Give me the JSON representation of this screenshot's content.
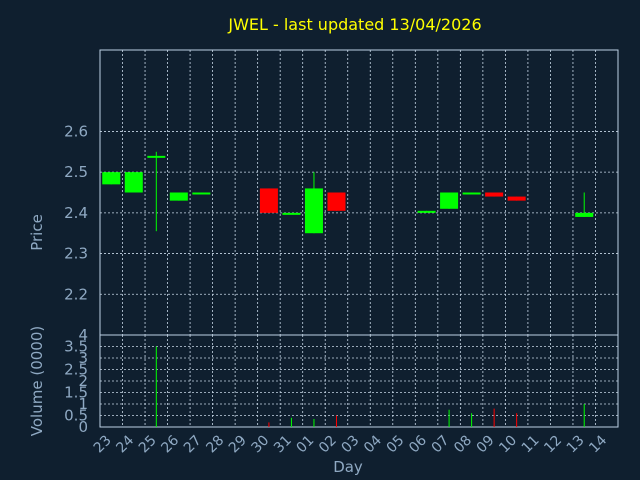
{
  "colors": {
    "background": "#0f1f2f",
    "frame": "#bcd0e4",
    "grid": "#c8d8e8",
    "text": "#8fa9c3",
    "title": "#ffff00",
    "up": "#00ff00",
    "down": "#ff0000"
  },
  "chart_data": [
    {
      "type": "candlestick",
      "title": "JWEL - last updated 13/04/2026",
      "ylabel": "Price",
      "ylim": [
        2.1,
        2.8
      ],
      "yticks": [
        "2.2",
        "2.3",
        "2.4",
        "2.5",
        "2.6"
      ],
      "grid": true,
      "candles": [
        {
          "x": 0,
          "open": 2.47,
          "high": 2.5,
          "low": 2.47,
          "close": 2.5
        },
        {
          "x": 1,
          "open": 2.45,
          "high": 2.5,
          "low": 2.45,
          "close": 2.5
        },
        {
          "x": 2,
          "open": 2.54,
          "high": 2.55,
          "low": 2.355,
          "close": 2.54
        },
        {
          "x": 3,
          "open": 2.43,
          "high": 2.45,
          "low": 2.43,
          "close": 2.45
        },
        {
          "x": 4,
          "open": 2.45,
          "high": 2.45,
          "low": 2.45,
          "close": 2.45
        },
        {
          "x": 7,
          "open": 2.46,
          "high": 2.46,
          "low": 2.4,
          "close": 2.4
        },
        {
          "x": 8,
          "open": 2.4,
          "high": 2.4,
          "low": 2.4,
          "close": 2.4
        },
        {
          "x": 9,
          "open": 2.35,
          "high": 2.5,
          "low": 2.35,
          "close": 2.46
        },
        {
          "x": 10,
          "open": 2.45,
          "high": 2.45,
          "low": 2.405,
          "close": 2.405
        },
        {
          "x": 14,
          "open": 2.4,
          "high": 2.405,
          "low": 2.4,
          "close": 2.405
        },
        {
          "x": 15,
          "open": 2.41,
          "high": 2.45,
          "low": 2.41,
          "close": 2.45
        },
        {
          "x": 16,
          "open": 2.45,
          "high": 2.45,
          "low": 2.45,
          "close": 2.45
        },
        {
          "x": 17,
          "open": 2.45,
          "high": 2.45,
          "low": 2.44,
          "close": 2.44
        },
        {
          "x": 18,
          "open": 2.44,
          "high": 2.44,
          "low": 2.43,
          "close": 2.43
        },
        {
          "x": 21,
          "open": 2.39,
          "high": 2.45,
          "low": 2.39,
          "close": 2.4
        }
      ]
    },
    {
      "type": "bar",
      "ylabel": "Volume (0000)",
      "xlabel": "Day",
      "ylim": [
        0,
        4
      ],
      "yticks": [
        "0",
        "0.5",
        "1",
        "1.5",
        "2",
        "2.5",
        "3",
        "3.5",
        "4"
      ],
      "grid": true,
      "categories": [
        "23",
        "24",
        "25",
        "26",
        "27",
        "28",
        "29",
        "30",
        "31",
        "01",
        "02",
        "03",
        "04",
        "05",
        "06",
        "07",
        "08",
        "09",
        "10",
        "11",
        "12",
        "13",
        "14"
      ],
      "bars": [
        {
          "x": 2,
          "value": 3.5,
          "direction": "up"
        },
        {
          "x": 7,
          "value": 0.2,
          "direction": "down"
        },
        {
          "x": 8,
          "value": 0.4,
          "direction": "up"
        },
        {
          "x": 9,
          "value": 0.35,
          "direction": "up"
        },
        {
          "x": 10,
          "value": 0.5,
          "direction": "down"
        },
        {
          "x": 15,
          "value": 0.75,
          "direction": "up"
        },
        {
          "x": 16,
          "value": 0.6,
          "direction": "up"
        },
        {
          "x": 17,
          "value": 0.8,
          "direction": "down"
        },
        {
          "x": 18,
          "value": 0.6,
          "direction": "down"
        },
        {
          "x": 21,
          "value": 1.0,
          "direction": "up"
        }
      ]
    }
  ]
}
